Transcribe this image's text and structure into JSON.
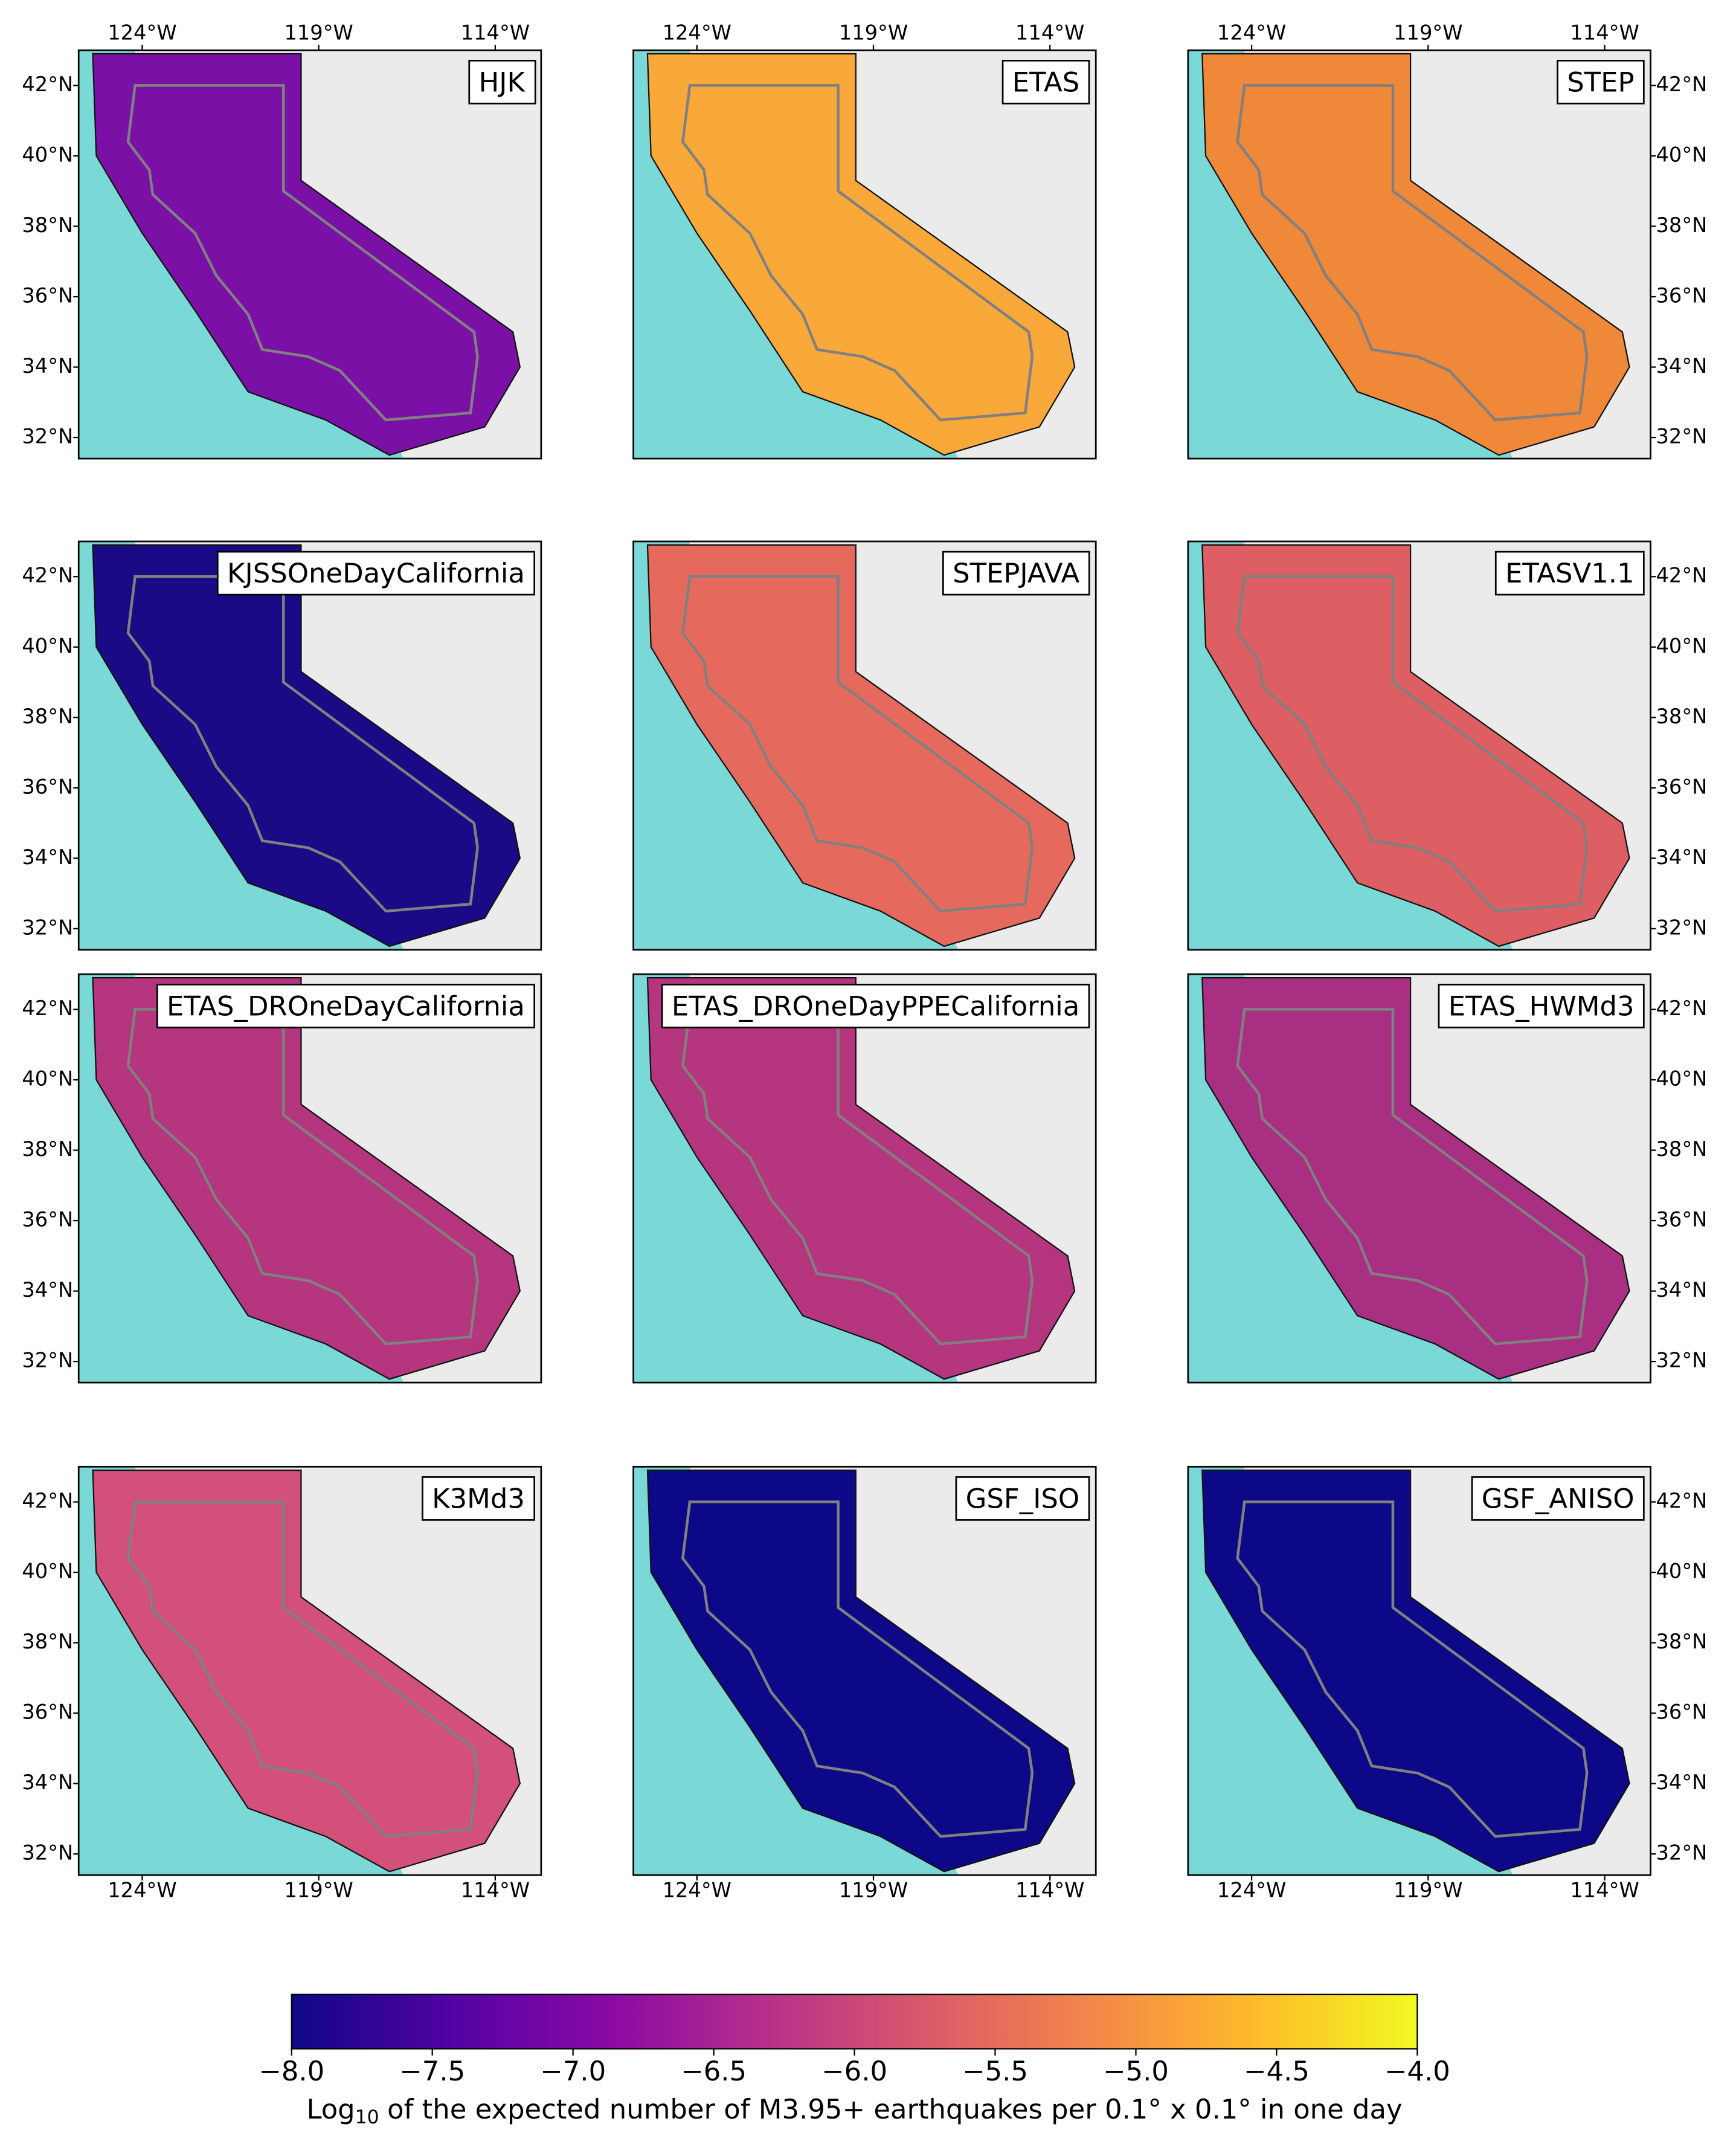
{
  "panels": [
    {
      "title": "HJK",
      "color": "#7a10a6"
    },
    {
      "title": "ETAS",
      "color": "#f9a83a"
    },
    {
      "title": "STEP",
      "color": "#f0883a"
    },
    {
      "title": "KJSSOneDayCalifornia",
      "color": "#1a0a85"
    },
    {
      "title": "STEPJAVA",
      "color": "#e56a5d"
    },
    {
      "title": "ETASV1.1",
      "color": "#dd5f63"
    },
    {
      "title": "ETAS_DROneDayCalifornia",
      "color": "#b5367e"
    },
    {
      "title": "ETAS_DROneDayPPECalifornia",
      "color": "#b5367e"
    },
    {
      "title": "ETAS_HWMd3",
      "color": "#a92f83"
    },
    {
      "title": "K3Md3",
      "color": "#d2507a"
    },
    {
      "title": "GSF_ISO",
      "color": "#0d0887"
    },
    {
      "title": "GSF_ANISO",
      "color": "#0d0887"
    }
  ],
  "map": {
    "xlim": [
      -125.8,
      -112.7
    ],
    "ylim": [
      31.4,
      43.0
    ],
    "lon_ticks": [
      {
        "value": -124,
        "label": "124°W"
      },
      {
        "value": -119,
        "label": "119°W"
      },
      {
        "value": -114,
        "label": "114°W"
      }
    ],
    "lat_ticks": [
      {
        "value": 42,
        "label": "42°N"
      },
      {
        "value": 40,
        "label": "40°N"
      },
      {
        "value": 38,
        "label": "38°N"
      },
      {
        "value": 36,
        "label": "36°N"
      },
      {
        "value": 34,
        "label": "34°N"
      },
      {
        "value": 32,
        "label": "32°N"
      }
    ]
  },
  "colorbar": {
    "lim": [
      -8,
      -4
    ],
    "ticks": [
      {
        "value": -8,
        "label": "−8.0"
      },
      {
        "value": -7.5,
        "label": "−7.5"
      },
      {
        "value": -7,
        "label": "−7.0"
      },
      {
        "value": -6.5,
        "label": "−6.5"
      },
      {
        "value": -6,
        "label": "−6.0"
      },
      {
        "value": -5.5,
        "label": "−5.5"
      },
      {
        "value": -5,
        "label": "−5.0"
      },
      {
        "value": -4.5,
        "label": "−4.5"
      },
      {
        "value": -4,
        "label": "−4.0"
      }
    ],
    "colors": [
      "#0d0887",
      "#5302a3",
      "#8b0aa5",
      "#b83289",
      "#db5c68",
      "#f48849",
      "#febc2a",
      "#f0f921"
    ],
    "label_prefix": "Log",
    "label_subscript": "10",
    "label_text": "of the expected number of M3.95+ earthquakes per 0.1° x 0.1° in one day"
  }
}
